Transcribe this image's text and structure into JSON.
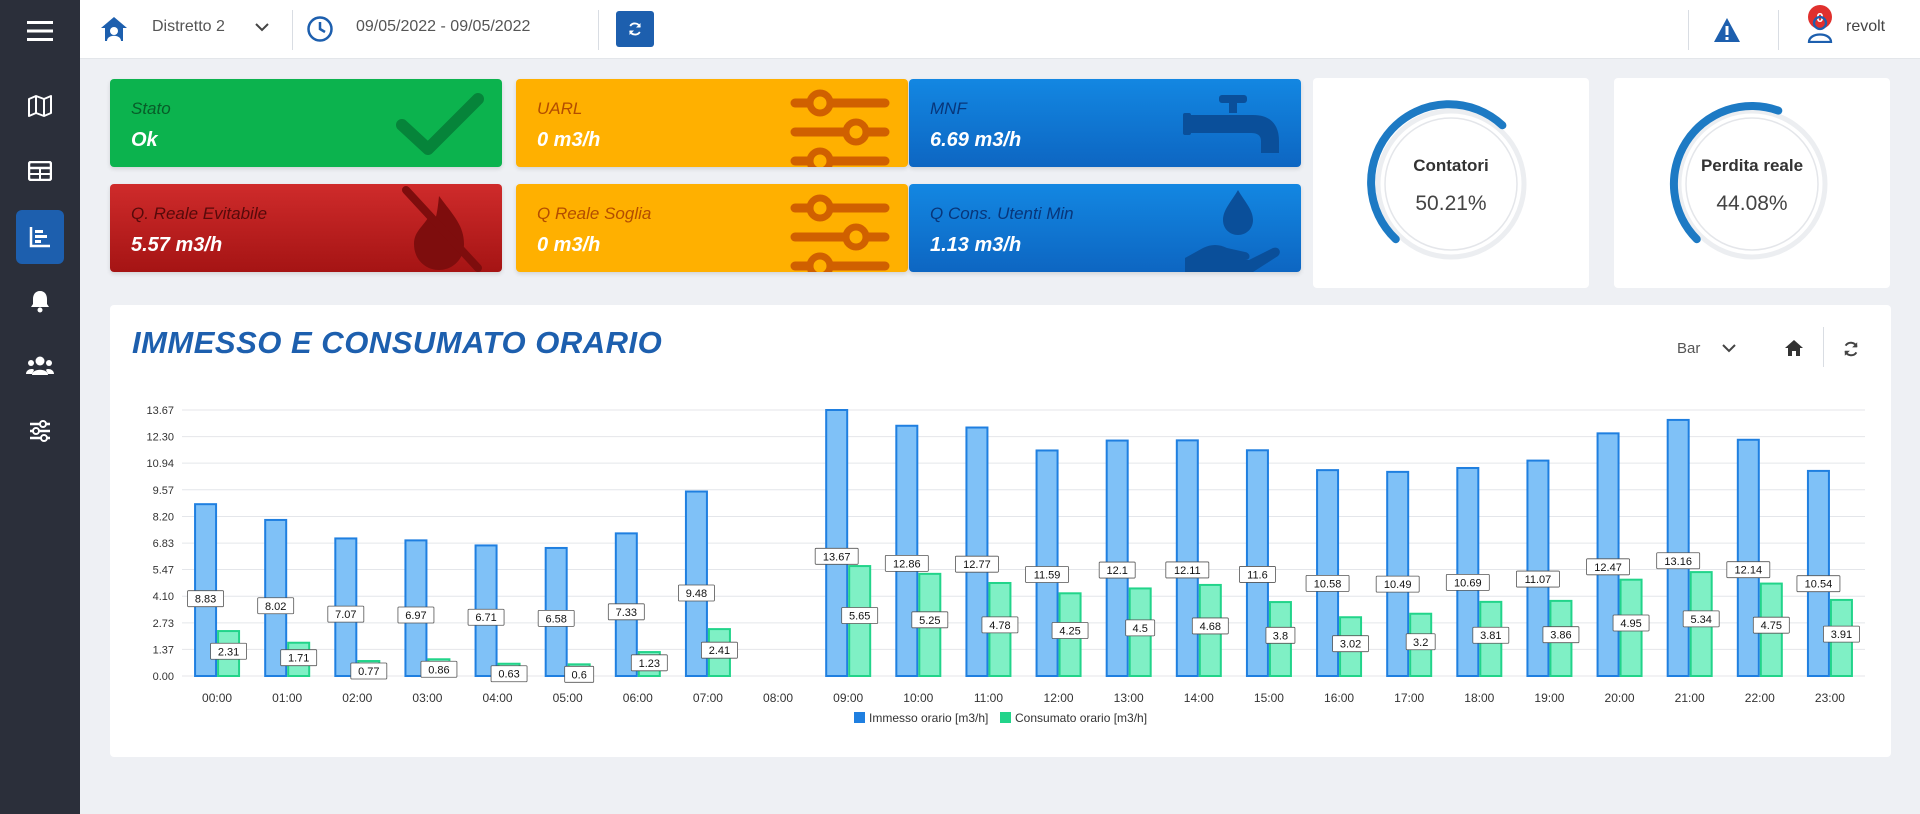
{
  "topbar": {
    "district": "Distretto 2",
    "date_range": "09/05/2022 - 09/05/2022",
    "alerts_count": "0",
    "username": "revolt"
  },
  "sidebar": {
    "items": [
      {
        "icon": "map-icon"
      },
      {
        "icon": "table-icon"
      },
      {
        "icon": "chart-icon",
        "active": true
      },
      {
        "icon": "bell-icon"
      },
      {
        "icon": "users-icon"
      },
      {
        "icon": "sliders-icon"
      }
    ]
  },
  "cards": {
    "stato": {
      "title": "Stato",
      "value": "Ok"
    },
    "q_reale": {
      "title": "Q. Reale Evitabile",
      "value": "5.57 m3/h"
    },
    "uarl": {
      "title": "UARL",
      "value": "0 m3/h"
    },
    "q_soglia": {
      "title": "Q Reale Soglia",
      "value": "0 m3/h"
    },
    "mnf": {
      "title": "MNF",
      "value": "6.69 m3/h"
    },
    "q_cons": {
      "title": "Q Cons. Utenti Min",
      "value": "1.13 m3/h"
    }
  },
  "gauges": [
    {
      "label": "Contatori",
      "value": "50.21%",
      "fraction": 0.5021
    },
    {
      "label": "Perdita reale",
      "value": "44.08%",
      "fraction": 0.4408
    }
  ],
  "panel": {
    "title": "IMMESSO E CONSUMATO ORARIO",
    "chart_type_select": "Bar"
  },
  "colors": {
    "immesso": "#7fc1f7",
    "consumato": "#7ff0c5",
    "accent": "#1d5fae"
  },
  "chart_data": {
    "type": "bar",
    "categories": [
      "00:00",
      "01:00",
      "02:00",
      "03:00",
      "04:00",
      "05:00",
      "06:00",
      "07:00",
      "08:00",
      "09:00",
      "10:00",
      "11:00",
      "12:00",
      "13:00",
      "14:00",
      "15:00",
      "16:00",
      "17:00",
      "18:00",
      "19:00",
      "20:00",
      "21:00",
      "22:00",
      "23:00"
    ],
    "series": [
      {
        "name": "Immesso orario [m3/h]",
        "values": [
          8.83,
          8.02,
          7.07,
          6.97,
          6.71,
          6.58,
          7.33,
          9.48,
          null,
          13.67,
          12.86,
          12.77,
          11.59,
          12.1,
          12.11,
          11.6,
          10.58,
          10.49,
          10.69,
          11.07,
          12.47,
          13.16,
          12.14,
          10.54
        ]
      },
      {
        "name": "Consumato orario [m3/h]",
        "values": [
          2.31,
          1.71,
          0.77,
          0.86,
          0.63,
          0.6,
          1.23,
          2.41,
          null,
          5.65,
          5.25,
          4.78,
          4.25,
          4.5,
          4.68,
          3.8,
          3.02,
          3.2,
          3.81,
          3.86,
          4.95,
          5.34,
          4.75,
          3.91
        ]
      }
    ],
    "y_ticks": [
      "0.00",
      "1.37",
      "2.73",
      "4.10",
      "5.47",
      "6.83",
      "8.20",
      "9.57",
      "10.94",
      "12.30",
      "13.67"
    ],
    "ylim": [
      0,
      13.67
    ],
    "legend": "bottom",
    "grid": true
  }
}
